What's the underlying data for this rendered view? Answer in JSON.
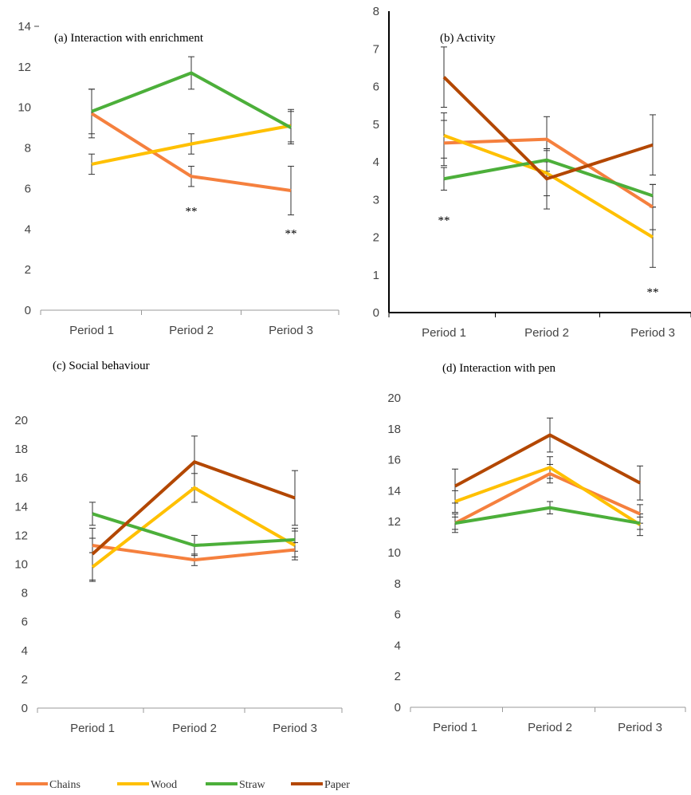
{
  "colors": {
    "Chains": "#f5803e",
    "Wood": "#ffc000",
    "Straw": "#4caf3a",
    "Paper": "#b34700",
    "axis": "#222222",
    "tick": "#444444",
    "errorbar": "#333333"
  },
  "legend": {
    "items": [
      "Chains",
      "Wood",
      "Straw",
      "Paper"
    ]
  },
  "chart_data": [
    {
      "type": "line",
      "title": "(a) Interaction with enrichment",
      "categories": [
        "Period 1",
        "Period 2",
        "Period 3"
      ],
      "ylim": [
        0,
        14
      ],
      "yticks": [
        0,
        2,
        4,
        6,
        8,
        10,
        12,
        14
      ],
      "annotations": [
        {
          "text": "**",
          "category": "Period 2",
          "y": 4.9
        },
        {
          "text": "**",
          "category": "Period 3",
          "y": 3.8
        }
      ],
      "series": [
        {
          "name": "Chains",
          "values": [
            9.7,
            6.6,
            5.9
          ],
          "errors": [
            1.2,
            0.5,
            1.2
          ]
        },
        {
          "name": "Wood",
          "values": [
            7.2,
            8.2,
            9.1
          ],
          "errors": [
            0.5,
            0.5,
            0.8
          ]
        },
        {
          "name": "Straw",
          "values": [
            9.8,
            11.7,
            9.0
          ],
          "errors": [
            1.1,
            0.8,
            0.8
          ]
        }
      ]
    },
    {
      "type": "line",
      "title": "(b)    Activity",
      "categories": [
        "Period 1",
        "Period 2",
        "Period 3"
      ],
      "ylim": [
        0,
        8
      ],
      "yticks": [
        0,
        1,
        2,
        3,
        4,
        5,
        6,
        7,
        8
      ],
      "annotations": [
        {
          "text": "**",
          "category": "Period 1",
          "y": 2.45
        },
        {
          "text": "**",
          "category": "Period 3",
          "y": 0.55
        }
      ],
      "series": [
        {
          "name": "Chains",
          "values": [
            4.5,
            4.6,
            2.8
          ],
          "errors": [
            0.6,
            0.6,
            0.6
          ]
        },
        {
          "name": "Wood",
          "values": [
            4.7,
            3.7,
            2.0
          ],
          "errors": [
            0.6,
            0.6,
            0.8
          ]
        },
        {
          "name": "Straw",
          "values": [
            3.55,
            4.05,
            3.1
          ],
          "errors": [
            0.3,
            0.3,
            0.3
          ]
        },
        {
          "name": "Paper",
          "values": [
            6.25,
            3.55,
            4.45
          ],
          "errors": [
            0.8,
            0.8,
            0.8
          ]
        }
      ]
    },
    {
      "type": "line",
      "title": "(c) Social behaviour",
      "categories": [
        "Period 1",
        "Period 2",
        "Period 3"
      ],
      "ylim": [
        0,
        20
      ],
      "yticks": [
        0,
        2,
        4,
        6,
        8,
        10,
        12,
        14,
        16,
        18,
        20
      ],
      "annotations": [],
      "series": [
        {
          "name": "Chains",
          "values": [
            11.3,
            10.3,
            11.0
          ],
          "errors": [
            0.5,
            0.4,
            0.5
          ]
        },
        {
          "name": "Wood",
          "values": [
            9.8,
            15.3,
            11.3
          ],
          "errors": [
            1.0,
            1.0,
            1.0
          ]
        },
        {
          "name": "Straw",
          "values": [
            13.5,
            11.3,
            11.7
          ],
          "errors": [
            0.8,
            0.7,
            0.8
          ]
        },
        {
          "name": "Paper",
          "values": [
            10.7,
            17.1,
            14.6
          ],
          "errors": [
            1.8,
            1.8,
            1.9
          ]
        }
      ]
    },
    {
      "type": "line",
      "title": "(d) Interaction with pen",
      "categories": [
        "Period 1",
        "Period 2",
        "Period 3"
      ],
      "ylim": [
        0,
        20
      ],
      "yticks": [
        0,
        2,
        4,
        6,
        8,
        10,
        12,
        14,
        16,
        18,
        20
      ],
      "annotations": [],
      "series": [
        {
          "name": "Chains",
          "values": [
            11.9,
            15.1,
            12.5
          ],
          "errors": [
            0.6,
            0.6,
            0.6
          ]
        },
        {
          "name": "Wood",
          "values": [
            13.3,
            15.5,
            11.8
          ],
          "errors": [
            0.7,
            0.7,
            0.7
          ]
        },
        {
          "name": "Straw",
          "values": [
            11.9,
            12.9,
            11.9
          ],
          "errors": [
            0.4,
            0.4,
            0.4
          ]
        },
        {
          "name": "Paper",
          "values": [
            14.3,
            17.6,
            14.5
          ],
          "errors": [
            1.1,
            1.1,
            1.1
          ]
        }
      ]
    }
  ]
}
